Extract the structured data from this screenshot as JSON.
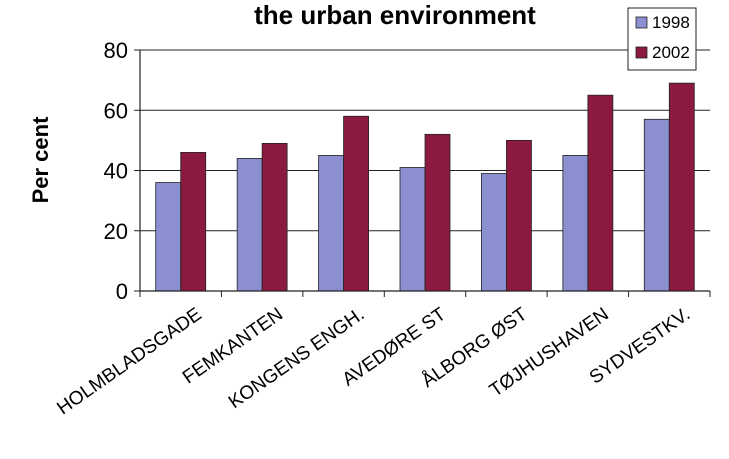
{
  "chart_data": {
    "type": "bar",
    "title": "the urban environment",
    "xlabel": "",
    "ylabel": "Per cent",
    "ylim": [
      0,
      80
    ],
    "yticks": [
      0,
      20,
      40,
      60,
      80
    ],
    "categories": [
      "HOLMBLADSGADE",
      "FEMKANTEN",
      "KONGENS ENGH.",
      "AVEDØRE ST",
      "ÅLBORG ØST",
      "TØJHUSHAVEN",
      "SYDVESTKV."
    ],
    "series": [
      {
        "name": "1998",
        "color": "#8b8fd0",
        "values": [
          36,
          44,
          45,
          41,
          39,
          45,
          57
        ]
      },
      {
        "name": "2002",
        "color": "#8b1a3e",
        "values": [
          46,
          49,
          58,
          52,
          50,
          65,
          69
        ]
      }
    ],
    "grid": true,
    "legend_position": "top-right"
  }
}
